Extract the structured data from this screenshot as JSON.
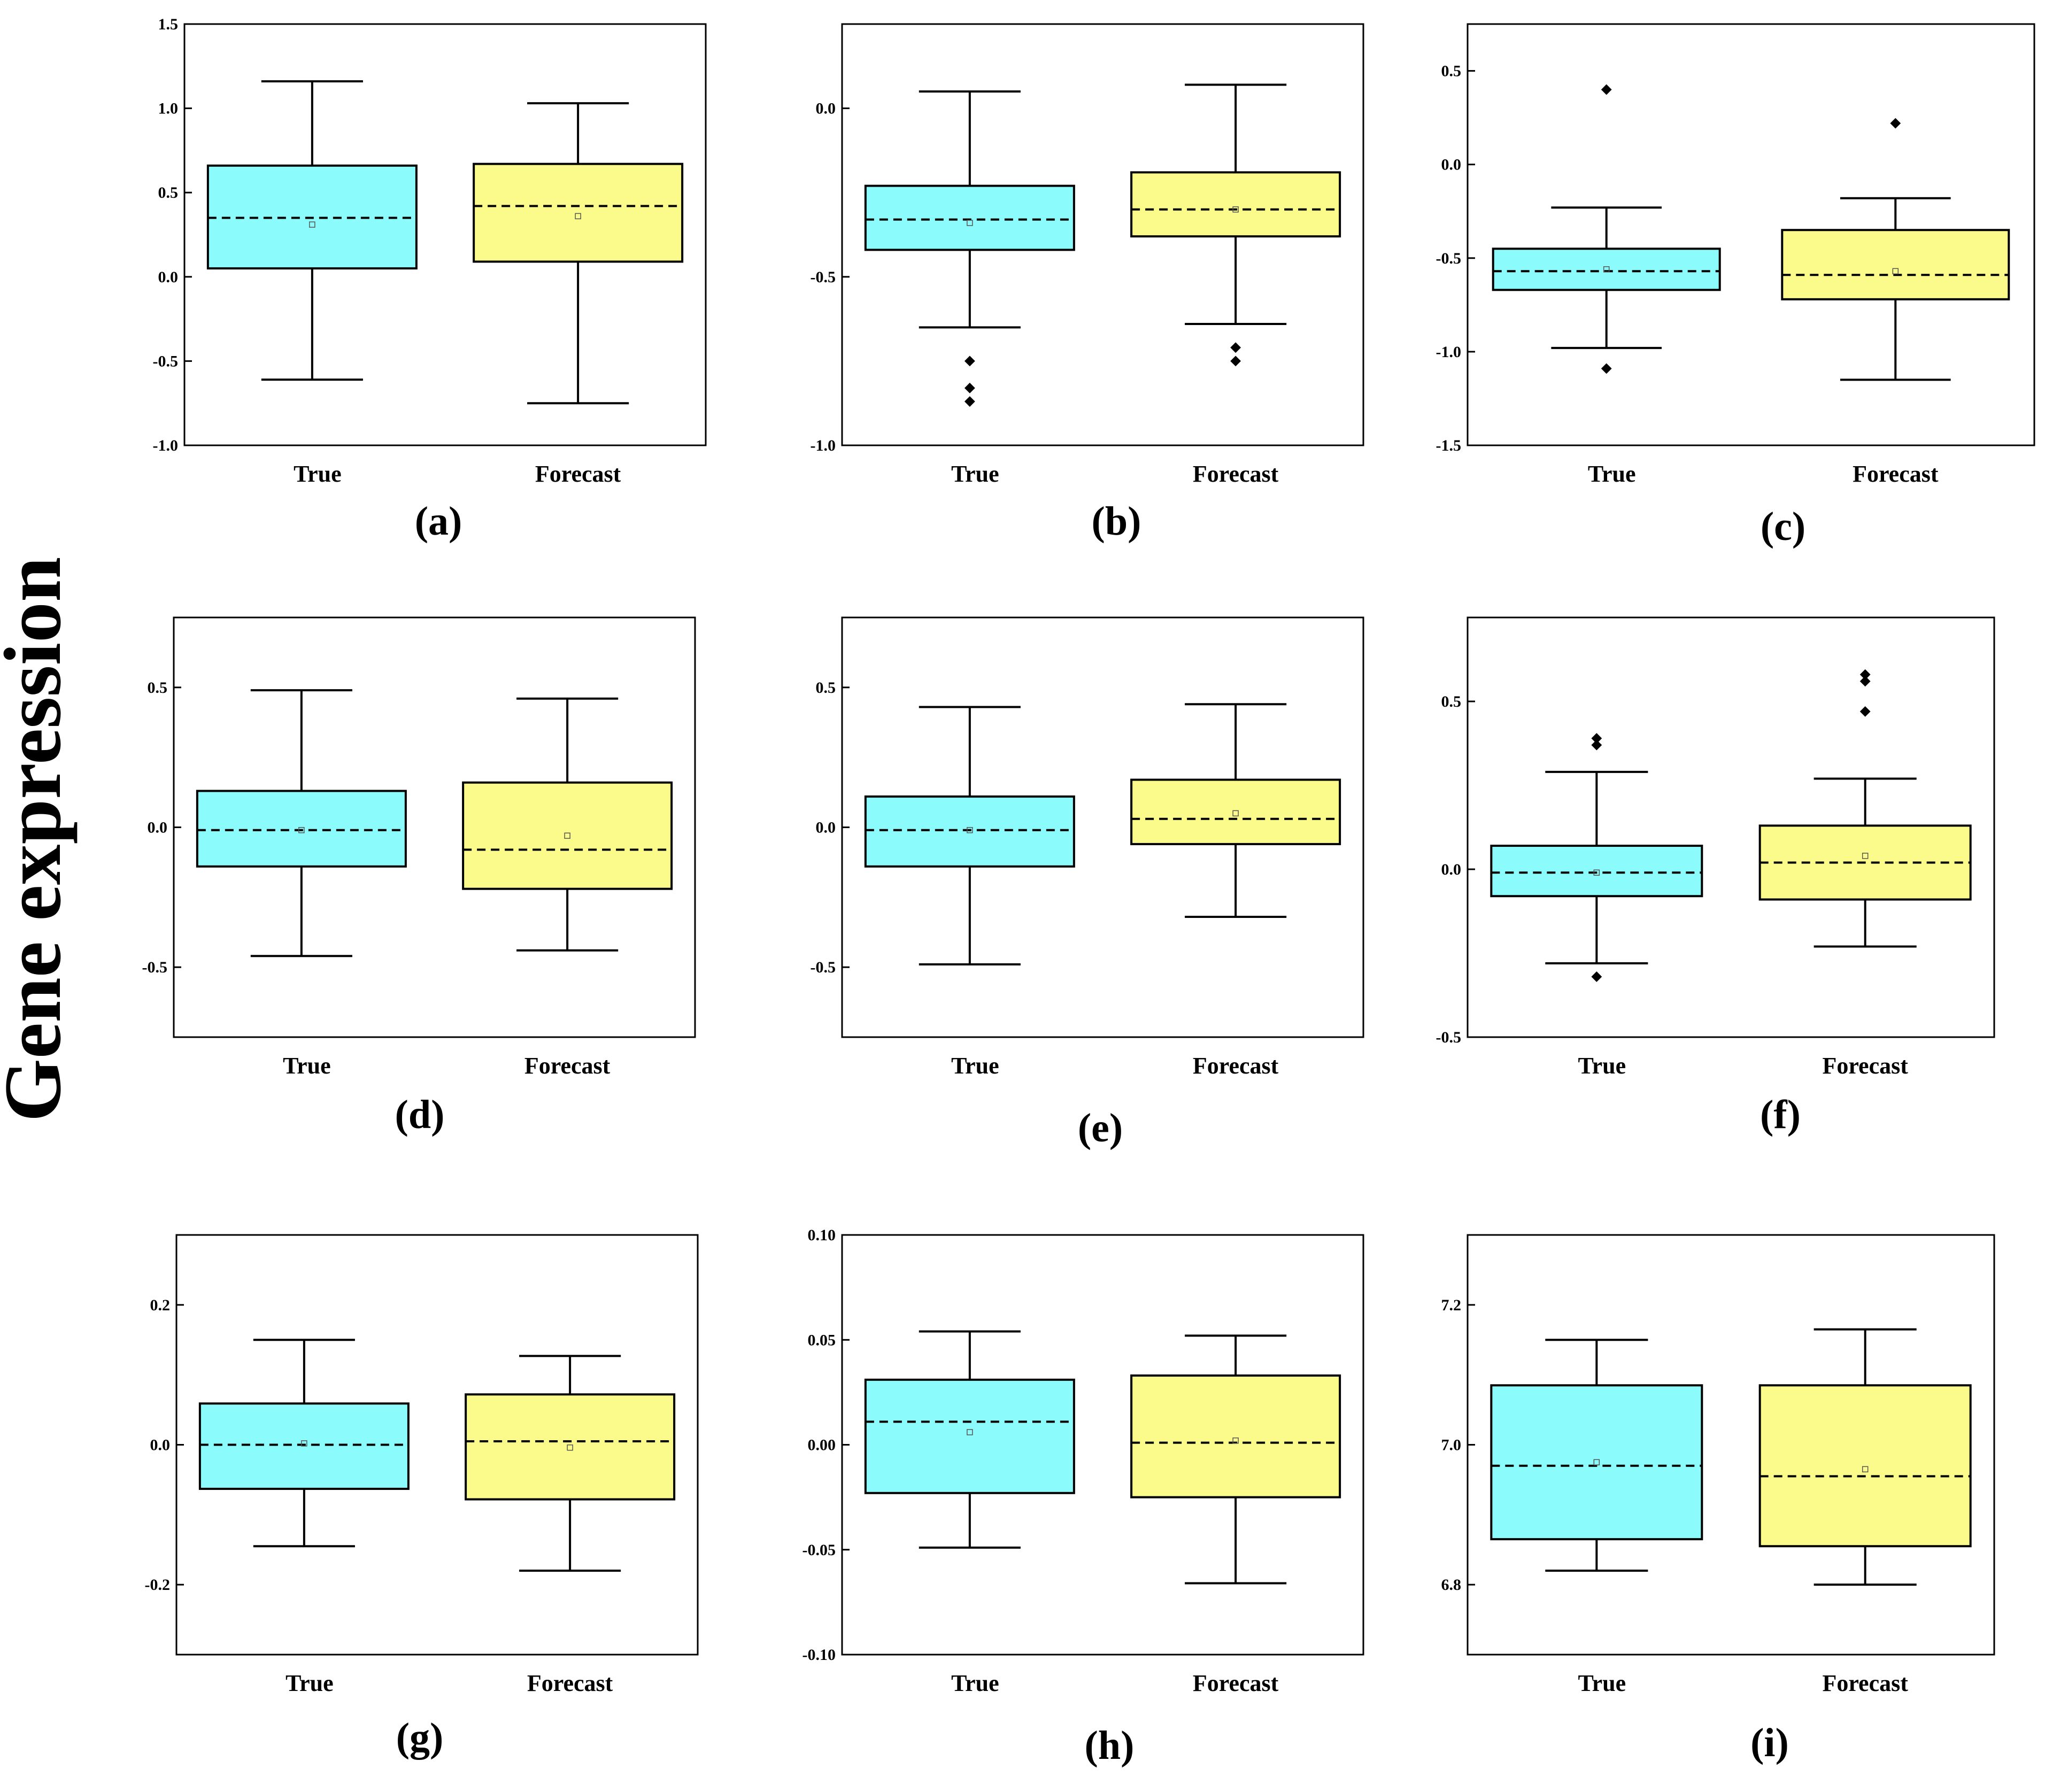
{
  "figure": {
    "ylabel": "Gene expression"
  },
  "colors": {
    "true_fill": "#8bfbfb",
    "forecast_fill": "#fafb8b",
    "stroke": "#000000"
  },
  "chart_data": [
    {
      "type": "box",
      "panel": "(a)",
      "categories": [
        "True",
        "Forecast"
      ],
      "ylim": [
        -1.0,
        1.5
      ],
      "yticks": [
        "-1.0",
        "-0.5",
        "0.0",
        "0.5",
        "1.0",
        "1.5"
      ],
      "boxes": [
        {
          "q1": 0.05,
          "median": 0.35,
          "q3": 0.66,
          "whisker_low": -0.61,
          "whisker_high": 1.16,
          "mean": 0.31,
          "outliers": []
        },
        {
          "q1": 0.09,
          "median": 0.42,
          "q3": 0.67,
          "whisker_low": -0.75,
          "whisker_high": 1.03,
          "mean": 0.36,
          "outliers": []
        }
      ]
    },
    {
      "type": "box",
      "panel": "(b)",
      "categories": [
        "True",
        "Forecast"
      ],
      "ylim": [
        -1.0,
        0.25
      ],
      "yticks": [
        "-1.0",
        "-0.5",
        "0.0"
      ],
      "boxes": [
        {
          "q1": -0.42,
          "median": -0.33,
          "q3": -0.23,
          "whisker_low": -0.65,
          "whisker_high": 0.05,
          "mean": -0.34,
          "outliers": [
            -0.75,
            -0.83,
            -0.87
          ]
        },
        {
          "q1": -0.38,
          "median": -0.3,
          "q3": -0.19,
          "whisker_low": -0.64,
          "whisker_high": 0.07,
          "mean": -0.3,
          "outliers": [
            -0.71,
            -0.75
          ]
        }
      ]
    },
    {
      "type": "box",
      "panel": "(c)",
      "categories": [
        "True",
        "Forecast"
      ],
      "ylim": [
        -1.5,
        0.75
      ],
      "yticks": [
        "-1.5",
        "-1.0",
        "-0.5",
        "0.0",
        "0.5"
      ],
      "boxes": [
        {
          "q1": -0.67,
          "median": -0.57,
          "q3": -0.45,
          "whisker_low": -0.98,
          "whisker_high": -0.23,
          "mean": -0.56,
          "outliers": [
            0.4,
            -1.09
          ]
        },
        {
          "q1": -0.72,
          "median": -0.59,
          "q3": -0.35,
          "whisker_low": -1.15,
          "whisker_high": -0.18,
          "mean": -0.57,
          "outliers": [
            0.22
          ]
        }
      ]
    },
    {
      "type": "box",
      "panel": "(d)",
      "categories": [
        "True",
        "Forecast"
      ],
      "ylim": [
        -0.75,
        0.75
      ],
      "yticks": [
        "-0.5",
        "0.0",
        "0.5"
      ],
      "boxes": [
        {
          "q1": -0.14,
          "median": -0.01,
          "q3": 0.13,
          "whisker_low": -0.46,
          "whisker_high": 0.49,
          "mean": -0.01,
          "outliers": []
        },
        {
          "q1": -0.22,
          "median": -0.08,
          "q3": 0.16,
          "whisker_low": -0.44,
          "whisker_high": 0.46,
          "mean": -0.03,
          "outliers": []
        }
      ]
    },
    {
      "type": "box",
      "panel": "(e)",
      "categories": [
        "True",
        "Forecast"
      ],
      "ylim": [
        -0.75,
        0.75
      ],
      "yticks": [
        "-0.5",
        "0.0",
        "0.5"
      ],
      "boxes": [
        {
          "q1": -0.14,
          "median": -0.01,
          "q3": 0.11,
          "whisker_low": -0.49,
          "whisker_high": 0.43,
          "mean": -0.01,
          "outliers": []
        },
        {
          "q1": -0.06,
          "median": 0.03,
          "q3": 0.17,
          "whisker_low": -0.32,
          "whisker_high": 0.44,
          "mean": 0.05,
          "outliers": []
        }
      ]
    },
    {
      "type": "box",
      "panel": "(f)",
      "categories": [
        "True",
        "Forecast"
      ],
      "ylim": [
        -0.5,
        0.75
      ],
      "yticks": [
        "-0.5",
        "0.0",
        "0.5"
      ],
      "boxes": [
        {
          "q1": -0.08,
          "median": -0.01,
          "q3": 0.07,
          "whisker_low": -0.28,
          "whisker_high": 0.29,
          "mean": -0.01,
          "outliers": [
            0.39,
            0.37,
            -0.32
          ]
        },
        {
          "q1": -0.09,
          "median": 0.02,
          "q3": 0.13,
          "whisker_low": -0.23,
          "whisker_high": 0.27,
          "mean": 0.04,
          "outliers": [
            0.58,
            0.56,
            0.47
          ]
        }
      ]
    },
    {
      "type": "box",
      "panel": "(g)",
      "categories": [
        "True",
        "Forecast"
      ],
      "ylim": [
        -0.3,
        0.3
      ],
      "yticks": [
        "-0.2",
        "0.0",
        "0.2"
      ],
      "boxes": [
        {
          "q1": -0.063,
          "median": 0.0,
          "q3": 0.059,
          "whisker_low": -0.145,
          "whisker_high": 0.15,
          "mean": 0.002,
          "outliers": []
        },
        {
          "q1": -0.078,
          "median": 0.005,
          "q3": 0.072,
          "whisker_low": -0.18,
          "whisker_high": 0.127,
          "mean": -0.004,
          "outliers": []
        }
      ]
    },
    {
      "type": "box",
      "panel": "(h)",
      "categories": [
        "True",
        "Forecast"
      ],
      "ylim": [
        -0.1,
        0.1
      ],
      "yticks": [
        "-0.10",
        "-0.05",
        "0.00",
        "0.05",
        "0.10"
      ],
      "boxes": [
        {
          "q1": -0.023,
          "median": 0.011,
          "q3": 0.031,
          "whisker_low": -0.049,
          "whisker_high": 0.054,
          "mean": 0.006,
          "outliers": []
        },
        {
          "q1": -0.025,
          "median": 0.001,
          "q3": 0.033,
          "whisker_low": -0.066,
          "whisker_high": 0.052,
          "mean": 0.002,
          "outliers": []
        }
      ]
    },
    {
      "type": "box",
      "panel": "(i)",
      "categories": [
        "True",
        "Forecast"
      ],
      "ylim": [
        6.7,
        7.3
      ],
      "yticks": [
        "6.8",
        "7.0",
        "7.2"
      ],
      "boxes": [
        {
          "q1": 6.865,
          "median": 6.97,
          "q3": 7.085,
          "whisker_low": 6.82,
          "whisker_high": 7.15,
          "mean": 6.975,
          "outliers": []
        },
        {
          "q1": 6.855,
          "median": 6.955,
          "q3": 7.085,
          "whisker_low": 6.8,
          "whisker_high": 7.165,
          "mean": 6.965,
          "outliers": []
        }
      ]
    }
  ]
}
